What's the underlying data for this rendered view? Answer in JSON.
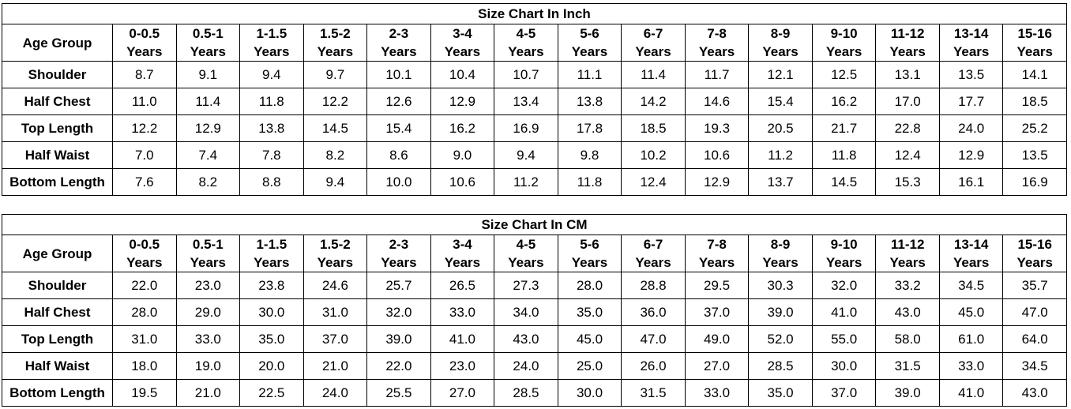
{
  "charts": [
    {
      "title": "Size Chart In Inch",
      "row_header": "Age Group",
      "ages": [
        [
          "0-0.5",
          "Years"
        ],
        [
          "0.5-1",
          "Years"
        ],
        [
          "1-1.5",
          "Years"
        ],
        [
          "1.5-2",
          "Years"
        ],
        [
          "2-3",
          "Years"
        ],
        [
          "3-4",
          "Years"
        ],
        [
          "4-5",
          "Years"
        ],
        [
          "5-6",
          "Years"
        ],
        [
          "6-7",
          "Years"
        ],
        [
          "7-8",
          "Years"
        ],
        [
          "8-9",
          "Years"
        ],
        [
          "9-10",
          "Years"
        ],
        [
          "11-12",
          "Years"
        ],
        [
          "13-14",
          "Years"
        ],
        [
          "15-16",
          "Years"
        ]
      ],
      "rows": [
        {
          "label": "Shoulder",
          "values": [
            "8.7",
            "9.1",
            "9.4",
            "9.7",
            "10.1",
            "10.4",
            "10.7",
            "11.1",
            "11.4",
            "11.7",
            "12.1",
            "12.5",
            "13.1",
            "13.5",
            "14.1"
          ]
        },
        {
          "label": "Half Chest",
          "values": [
            "11.0",
            "11.4",
            "11.8",
            "12.2",
            "12.6",
            "12.9",
            "13.4",
            "13.8",
            "14.2",
            "14.6",
            "15.4",
            "16.2",
            "17.0",
            "17.7",
            "18.5"
          ]
        },
        {
          "label": "Top Length",
          "values": [
            "12.2",
            "12.9",
            "13.8",
            "14.5",
            "15.4",
            "16.2",
            "16.9",
            "17.8",
            "18.5",
            "19.3",
            "20.5",
            "21.7",
            "22.8",
            "24.0",
            "25.2"
          ]
        },
        {
          "label": "Half Waist",
          "values": [
            "7.0",
            "7.4",
            "7.8",
            "8.2",
            "8.6",
            "9.0",
            "9.4",
            "9.8",
            "10.2",
            "10.6",
            "11.2",
            "11.8",
            "12.4",
            "12.9",
            "13.5"
          ]
        },
        {
          "label": "Bottom Length",
          "values": [
            "7.6",
            "8.2",
            "8.8",
            "9.4",
            "10.0",
            "10.6",
            "11.2",
            "11.8",
            "12.4",
            "12.9",
            "13.7",
            "14.5",
            "15.3",
            "16.1",
            "16.9"
          ]
        }
      ]
    },
    {
      "title": "Size Chart In CM",
      "row_header": "Age Group",
      "ages": [
        [
          "0-0.5",
          "Years"
        ],
        [
          "0.5-1",
          "Years"
        ],
        [
          "1-1.5",
          "Years"
        ],
        [
          "1.5-2",
          "Years"
        ],
        [
          "2-3",
          "Years"
        ],
        [
          "3-4",
          "Years"
        ],
        [
          "4-5",
          "Years"
        ],
        [
          "5-6",
          "Years"
        ],
        [
          "6-7",
          "Years"
        ],
        [
          "7-8",
          "Years"
        ],
        [
          "8-9",
          "Years"
        ],
        [
          "9-10",
          "Years"
        ],
        [
          "11-12",
          "Years"
        ],
        [
          "13-14",
          "Years"
        ],
        [
          "15-16",
          "Years"
        ]
      ],
      "rows": [
        {
          "label": "Shoulder",
          "values": [
            "22.0",
            "23.0",
            "23.8",
            "24.6",
            "25.7",
            "26.5",
            "27.3",
            "28.0",
            "28.8",
            "29.5",
            "30.3",
            "32.0",
            "33.2",
            "34.5",
            "35.7"
          ]
        },
        {
          "label": "Half Chest",
          "values": [
            "28.0",
            "29.0",
            "30.0",
            "31.0",
            "32.0",
            "33.0",
            "34.0",
            "35.0",
            "36.0",
            "37.0",
            "39.0",
            "41.0",
            "43.0",
            "45.0",
            "47.0"
          ]
        },
        {
          "label": "Top Length",
          "values": [
            "31.0",
            "33.0",
            "35.0",
            "37.0",
            "39.0",
            "41.0",
            "43.0",
            "45.0",
            "47.0",
            "49.0",
            "52.0",
            "55.0",
            "58.0",
            "61.0",
            "64.0"
          ]
        },
        {
          "label": "Half Waist",
          "values": [
            "18.0",
            "19.0",
            "20.0",
            "21.0",
            "22.0",
            "23.0",
            "24.0",
            "25.0",
            "26.0",
            "27.0",
            "28.5",
            "30.0",
            "31.5",
            "33.0",
            "34.5"
          ]
        },
        {
          "label": "Bottom Length",
          "values": [
            "19.5",
            "21.0",
            "22.5",
            "24.0",
            "25.5",
            "27.0",
            "28.5",
            "30.0",
            "31.5",
            "33.0",
            "35.0",
            "37.0",
            "39.0",
            "41.0",
            "43.0"
          ]
        }
      ]
    }
  ]
}
